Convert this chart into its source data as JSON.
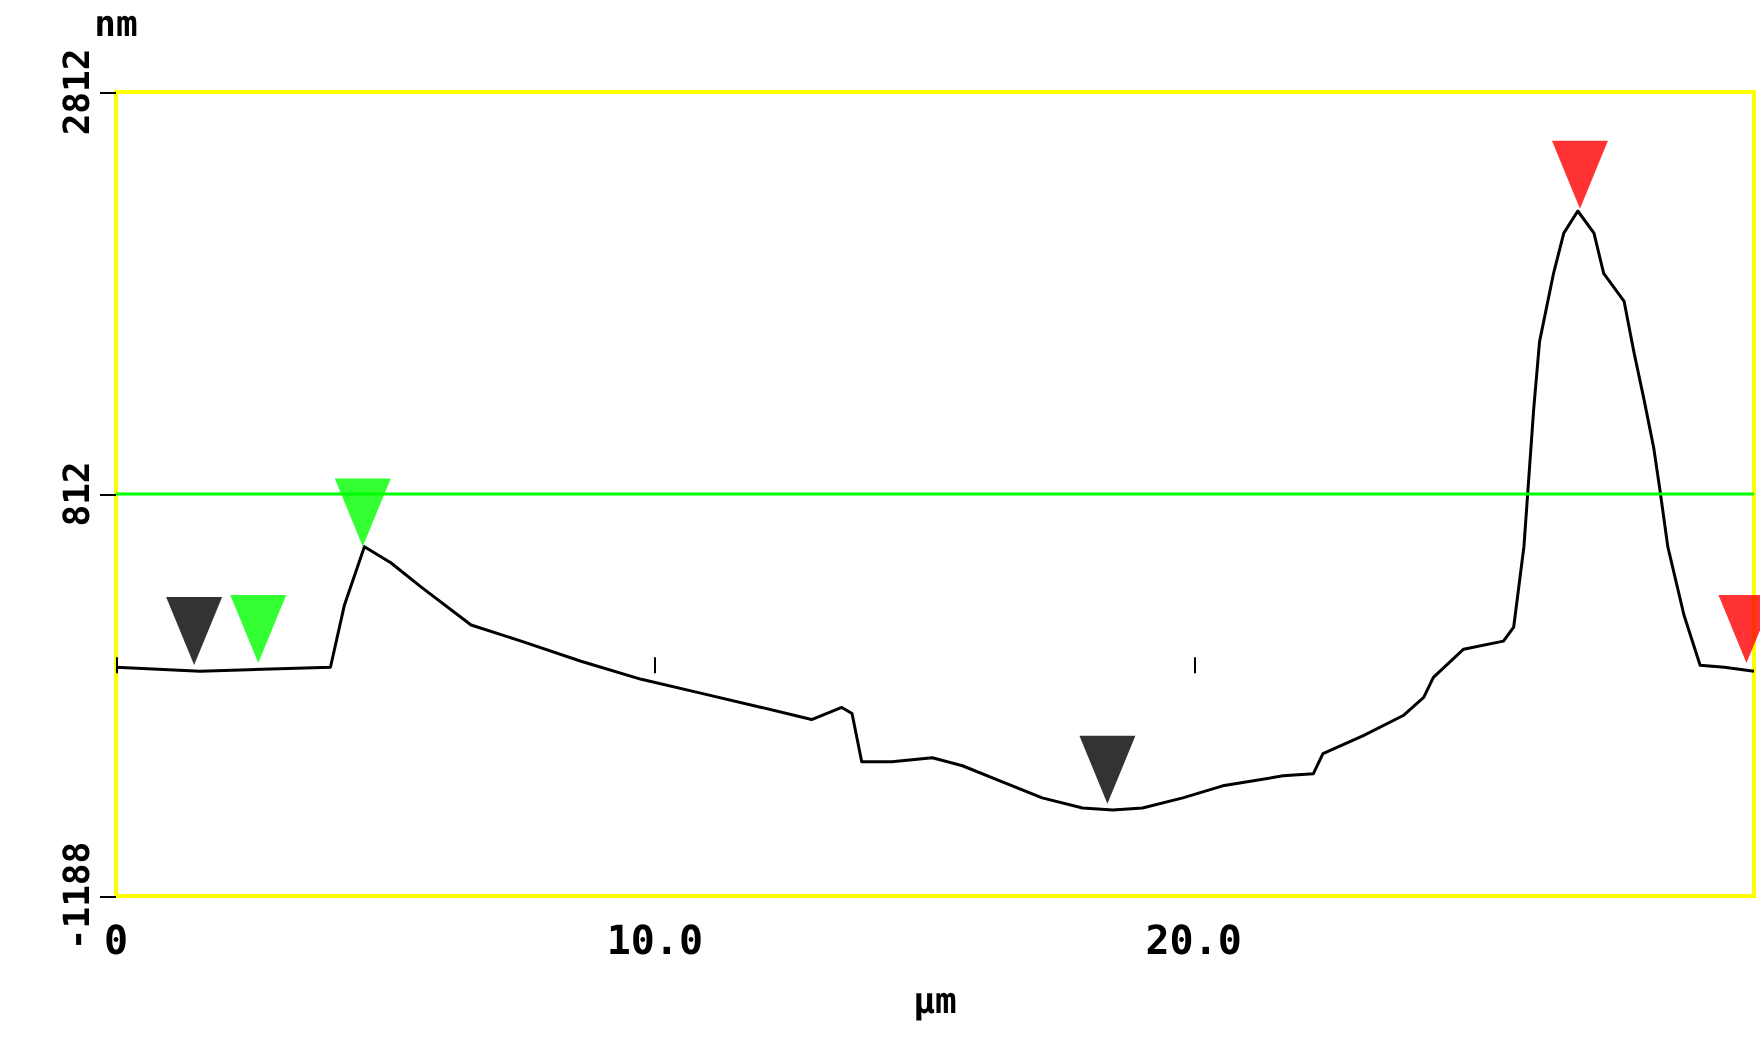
{
  "chart_data": {
    "type": "line",
    "xlabel": "µm",
    "ylabel": "nm",
    "xlim": [
      0,
      30.4
    ],
    "xticks": [
      0,
      {
        "value": 10,
        "label": "10.0"
      },
      {
        "value": 20,
        "label": "20.0"
      }
    ],
    "ylim": [
      -1188,
      2812
    ],
    "yticks": [
      -1188,
      812,
      2812
    ],
    "grid": false,
    "ref_lines": [
      {
        "axis": "y",
        "value": 812,
        "color": "#00ff00"
      }
    ],
    "series": [
      {
        "color": "#000000",
        "marker": "none",
        "x": [
          0,
          1.56,
          3.98,
          4.24,
          4.61,
          5.1,
          5.66,
          6.59,
          7.52,
          8.63,
          9.75,
          10.87,
          11.98,
          12.91,
          13.47,
          13.66,
          13.84,
          14.4,
          15.15,
          15.71,
          16.45,
          17.19,
          17.94,
          18.5,
          19.05,
          19.8,
          20.54,
          21.66,
          22.22,
          22.4,
          23.15,
          23.89,
          24.27,
          24.45,
          25.01,
          25.75,
          25.94,
          26.13,
          26.31,
          26.42,
          26.68,
          26.87,
          27.13,
          27.43,
          27.61,
          27.99,
          28.17,
          28.36,
          28.54,
          28.65,
          28.8,
          29.1,
          29.4,
          29.85,
          30.4
        ],
        "values": [
          -50,
          -70,
          -50,
          260,
          550,
          470,
          350,
          160,
          80,
          -20,
          -110,
          -180,
          -250,
          -310,
          -250,
          -280,
          -520,
          -520,
          -500,
          -540,
          -620,
          -700,
          -750,
          -760,
          -750,
          -700,
          -640,
          -590,
          -580,
          -480,
          -390,
          -290,
          -200,
          -100,
          40,
          80,
          150,
          550,
          1230,
          1570,
          1910,
          2110,
          2220,
          2110,
          1910,
          1770,
          1520,
          1280,
          1040,
          840,
          550,
          210,
          -40,
          -50,
          -70
        ]
      },
      {
        "type": "scatter",
        "color": "#000000",
        "marker": "triangle",
        "x": [
          1.45,
          18.4
        ],
        "values": [
          130,
          -560
        ]
      },
      {
        "type": "scatter",
        "color": "#00ff00",
        "marker": "triangle",
        "x": [
          2.64,
          4.58
        ],
        "values": [
          140,
          720
        ]
      },
      {
        "type": "scatter",
        "color": "#ff0000",
        "marker": "triangle",
        "x": [
          27.17,
          30.26
        ],
        "values": [
          2400,
          140
        ]
      }
    ]
  }
}
